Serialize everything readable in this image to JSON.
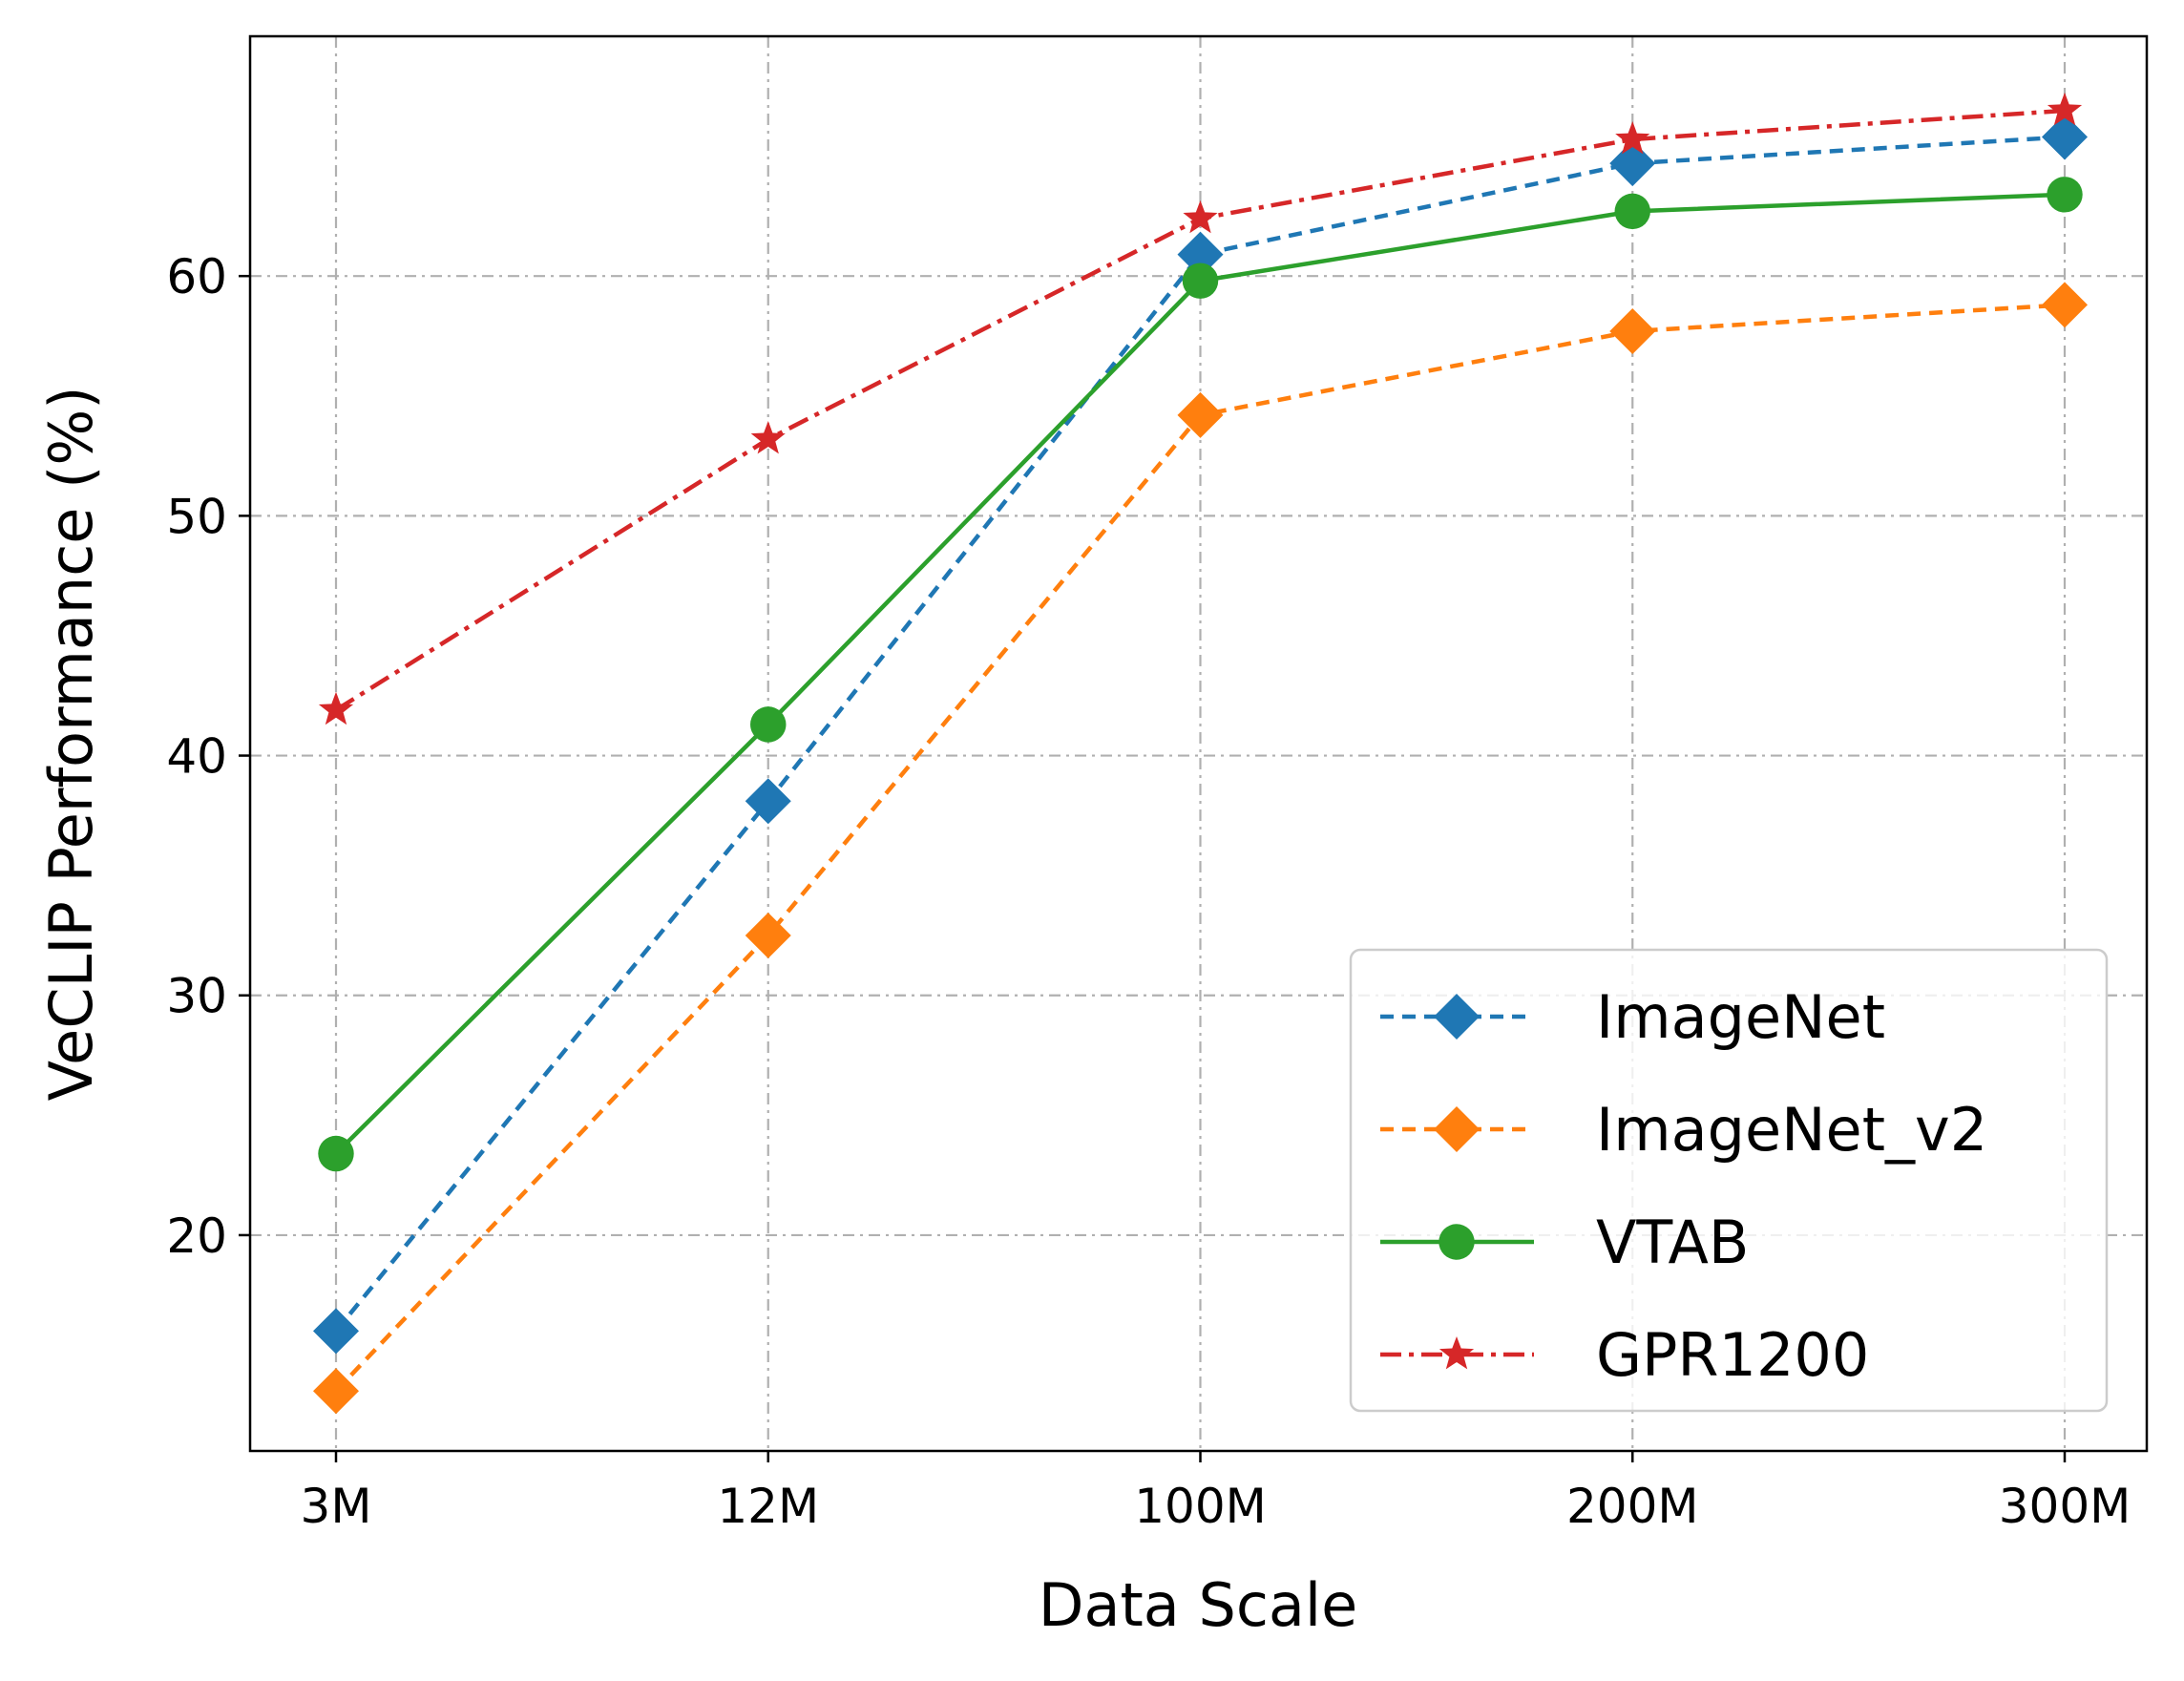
{
  "chart_data": {
    "type": "line",
    "title": "",
    "xlabel": "Data Scale",
    "ylabel": "VeCLIP Performance (%)",
    "categories": [
      "3M",
      "12M",
      "100M",
      "200M",
      "300M"
    ],
    "ylim": [
      11,
      70
    ],
    "yticks": [
      20,
      30,
      40,
      50,
      60
    ],
    "grid": true,
    "legend_position": "lower-right",
    "series": [
      {
        "name": "ImageNet",
        "color": "#1f77b4",
        "marker": "diamond",
        "linestyle": "dashed",
        "values": [
          16.0,
          38.1,
          60.9,
          64.7,
          65.8
        ]
      },
      {
        "name": "ImageNet_v2",
        "color": "#ff7f0e",
        "marker": "diamond",
        "linestyle": "dashed",
        "values": [
          13.5,
          32.5,
          54.2,
          57.7,
          58.8
        ]
      },
      {
        "name": "VTAB",
        "color": "#2ca02c",
        "marker": "circle",
        "linestyle": "solid",
        "values": [
          23.4,
          41.3,
          59.8,
          62.7,
          63.4
        ]
      },
      {
        "name": "GPR1200",
        "color": "#d62728",
        "marker": "star",
        "linestyle": "dashdot",
        "values": [
          41.9,
          53.2,
          62.4,
          65.7,
          66.9
        ]
      }
    ]
  }
}
